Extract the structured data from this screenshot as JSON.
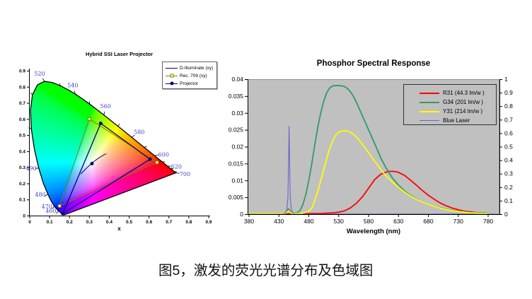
{
  "caption": "图5，激发的荧光光谱分布及色域图",
  "chart_data": [
    {
      "type": "scatter",
      "name": "cie-1931-chromaticity-diagram",
      "title": "Hybrid SSI Laser Projector",
      "xlabel": "x",
      "xlim": [
        0,
        0.9
      ],
      "ylim": [
        0,
        0.9
      ],
      "xticks": [
        "0",
        "0.1",
        "0.2",
        "0.3",
        "0.4",
        "0.5",
        "0.6",
        "0.7",
        "0.8",
        "0.9"
      ],
      "yticks": [
        "0",
        "0.1",
        "0.2",
        "0.3",
        "0.4",
        "0.5",
        "0.6",
        "0.7",
        "0.8",
        "0.9"
      ],
      "wavelength_label_color": "#4343c8",
      "wavelength_labels": [
        460,
        470,
        480,
        490,
        520,
        540,
        560,
        580,
        600,
        620,
        700
      ],
      "minor_locus_ticks": [
        500,
        510,
        530,
        550,
        570,
        590,
        610,
        630,
        650
      ],
      "spectral_locus": [
        [
          380,
          0.1741,
          0.005
        ],
        [
          400,
          0.1733,
          0.0048
        ],
        [
          420,
          0.1714,
          0.0051
        ],
        [
          440,
          0.1644,
          0.0109
        ],
        [
          450,
          0.1566,
          0.0177
        ],
        [
          460,
          0.144,
          0.0297
        ],
        [
          470,
          0.1241,
          0.0578
        ],
        [
          475,
          0.1096,
          0.0868
        ],
        [
          480,
          0.0913,
          0.1327
        ],
        [
          485,
          0.0687,
          0.2007
        ],
        [
          490,
          0.0454,
          0.295
        ],
        [
          495,
          0.0235,
          0.4127
        ],
        [
          500,
          0.0082,
          0.5384
        ],
        [
          505,
          0.0039,
          0.6548
        ],
        [
          510,
          0.0139,
          0.7502
        ],
        [
          515,
          0.0389,
          0.812
        ],
        [
          520,
          0.0743,
          0.8338
        ],
        [
          525,
          0.1142,
          0.8262
        ],
        [
          530,
          0.1547,
          0.8059
        ],
        [
          535,
          0.1929,
          0.7816
        ],
        [
          540,
          0.2296,
          0.7543
        ],
        [
          545,
          0.2658,
          0.7243
        ],
        [
          550,
          0.3016,
          0.6923
        ],
        [
          555,
          0.3373,
          0.6589
        ],
        [
          560,
          0.3731,
          0.6245
        ],
        [
          565,
          0.4087,
          0.5896
        ],
        [
          570,
          0.4441,
          0.5547
        ],
        [
          575,
          0.4788,
          0.5202
        ],
        [
          580,
          0.5125,
          0.4866
        ],
        [
          585,
          0.5448,
          0.4544
        ],
        [
          590,
          0.5752,
          0.4242
        ],
        [
          595,
          0.6029,
          0.3965
        ],
        [
          600,
          0.627,
          0.3725
        ],
        [
          605,
          0.6482,
          0.3514
        ],
        [
          610,
          0.6658,
          0.334
        ],
        [
          620,
          0.6915,
          0.3083
        ],
        [
          630,
          0.7079,
          0.292
        ],
        [
          640,
          0.719,
          0.2809
        ],
        [
          650,
          0.726,
          0.274
        ],
        [
          700,
          0.7347,
          0.2653
        ]
      ],
      "series": [
        {
          "name": "D-Illuminate (xy)",
          "color": "#00007f",
          "marker": "none",
          "line_type": "curve",
          "points": [
            [
              0.2565,
              0.2577
            ],
            [
              0.265,
              0.269
            ],
            [
              0.2745,
              0.281
            ],
            [
              0.285,
              0.2935
            ],
            [
              0.2966,
              0.3075
            ],
            [
              0.3097,
              0.3225
            ],
            [
              0.324,
              0.337
            ],
            [
              0.34,
              0.3515
            ],
            [
              0.357,
              0.3655
            ],
            [
              0.375,
              0.379
            ],
            [
              0.385,
              0.384
            ]
          ]
        },
        {
          "name": "Rec. 709 (xy)",
          "color": "#808000",
          "marker": "square-open",
          "marker_fill": "#ffffc8",
          "line_type": "triangle",
          "points": [
            [
              0.64,
              0.33
            ],
            [
              0.3,
              0.6
            ],
            [
              0.15,
              0.06
            ]
          ]
        },
        {
          "name": "Projector",
          "color": "#00007f",
          "marker": "circle",
          "line_type": "triangle",
          "points": [
            [
              0.605,
              0.35
            ],
            [
              0.357,
              0.573
            ],
            [
              0.166,
              0.012
            ]
          ],
          "white_point": [
            0.313,
            0.323
          ]
        }
      ]
    },
    {
      "type": "line",
      "name": "phosphor-spectral-response",
      "title": "Phosphor Spectral Response",
      "xlabel": "Wavelength (nm)",
      "xlim": [
        380,
        780
      ],
      "ylim_left": [
        0,
        0.04
      ],
      "ylim_right": [
        0,
        1
      ],
      "xticks": [
        380,
        430,
        480,
        530,
        580,
        630,
        680,
        730,
        780
      ],
      "yticks_left": [
        "0",
        "0.005",
        "0.01",
        "0.015",
        "0.02",
        "0.025",
        "0.03",
        "0.035",
        "0.04"
      ],
      "yticks_right": [
        "0",
        "0.1",
        "0.2",
        "0.3",
        "0.4",
        "0.5",
        "0.6",
        "0.7",
        "0.8",
        "0.9",
        "1"
      ],
      "plot_bg": "#c0c0c0",
      "series": [
        {
          "name": "R31 (44.3 lm/w )",
          "color": "#ff0000",
          "axis": "left",
          "x": [
            380,
            450,
            480,
            500,
            510,
            520,
            530,
            540,
            550,
            560,
            570,
            580,
            590,
            600,
            610,
            615,
            620,
            625,
            630,
            640,
            650,
            660,
            670,
            680,
            690,
            700,
            710,
            720,
            730,
            740,
            760,
            780
          ],
          "y": [
            0.0001,
            0.0001,
            0.0002,
            0.0002,
            0.0003,
            0.0004,
            0.0006,
            0.001,
            0.0019,
            0.0033,
            0.0052,
            0.0077,
            0.0102,
            0.0118,
            0.0125,
            0.0127,
            0.0127,
            0.0126,
            0.0124,
            0.0115,
            0.0101,
            0.0086,
            0.007,
            0.0056,
            0.0044,
            0.0033,
            0.0025,
            0.0018,
            0.0013,
            0.0009,
            0.0005,
            0.0003
          ]
        },
        {
          "name": "G34 (201 lm/w )",
          "color": "#339966",
          "axis": "left",
          "x": [
            380,
            400,
            420,
            435,
            440,
            443,
            446,
            449,
            452,
            456,
            460,
            465,
            470,
            475,
            480,
            485,
            490,
            495,
            500,
            505,
            510,
            515,
            520,
            525,
            530,
            535,
            540,
            545,
            550,
            555,
            560,
            570,
            580,
            590,
            600,
            610,
            620,
            630,
            640,
            650,
            660,
            670,
            680,
            700,
            720,
            750,
            780
          ],
          "y": [
            0.0002,
            0.0002,
            0.0002,
            0.0002,
            0.0003,
            0.0008,
            0.0016,
            0.0008,
            0.0003,
            0.0003,
            0.0004,
            0.001,
            0.0028,
            0.0058,
            0.01,
            0.015,
            0.0205,
            0.0258,
            0.03,
            0.0335,
            0.036,
            0.0374,
            0.038,
            0.0381,
            0.0381,
            0.038,
            0.0378,
            0.0372,
            0.0362,
            0.0348,
            0.033,
            0.029,
            0.025,
            0.021,
            0.0168,
            0.0135,
            0.0107,
            0.0086,
            0.0069,
            0.0056,
            0.0045,
            0.0036,
            0.0029,
            0.0019,
            0.0011,
            0.0005,
            0.0003
          ]
        },
        {
          "name": "Y31 (214 lm/w )",
          "color": "#ffff00",
          "axis": "left",
          "x": [
            380,
            420,
            440,
            443,
            446,
            449,
            452,
            460,
            470,
            480,
            485,
            490,
            495,
            500,
            505,
            510,
            515,
            520,
            525,
            530,
            535,
            540,
            545,
            550,
            555,
            560,
            570,
            580,
            590,
            600,
            610,
            620,
            630,
            640,
            650,
            660,
            670,
            680,
            700,
            720,
            750,
            780
          ],
          "y": [
            0.0002,
            0.0002,
            0.0002,
            0.0005,
            0.001,
            0.0005,
            0.0002,
            0.0002,
            0.0003,
            0.0008,
            0.0018,
            0.004,
            0.0068,
            0.01,
            0.0133,
            0.0165,
            0.0195,
            0.0218,
            0.0234,
            0.0243,
            0.0246,
            0.0247,
            0.0246,
            0.0242,
            0.0236,
            0.0228,
            0.0207,
            0.0182,
            0.0157,
            0.0133,
            0.0112,
            0.0095,
            0.008,
            0.0066,
            0.0054,
            0.0044,
            0.0036,
            0.0029,
            0.0018,
            0.001,
            0.0004,
            0.0002
          ]
        },
        {
          "name": "Blue Laser",
          "color": "#6666cc",
          "axis": "right",
          "thin": true,
          "x": [
            380,
            436,
            440,
            443,
            445,
            446,
            447,
            448,
            449,
            451,
            454,
            458,
            780
          ],
          "y": [
            0,
            0,
            0.004,
            0.03,
            0.12,
            0.35,
            0.65,
            0.35,
            0.12,
            0.03,
            0.004,
            0,
            0
          ]
        }
      ]
    }
  ]
}
